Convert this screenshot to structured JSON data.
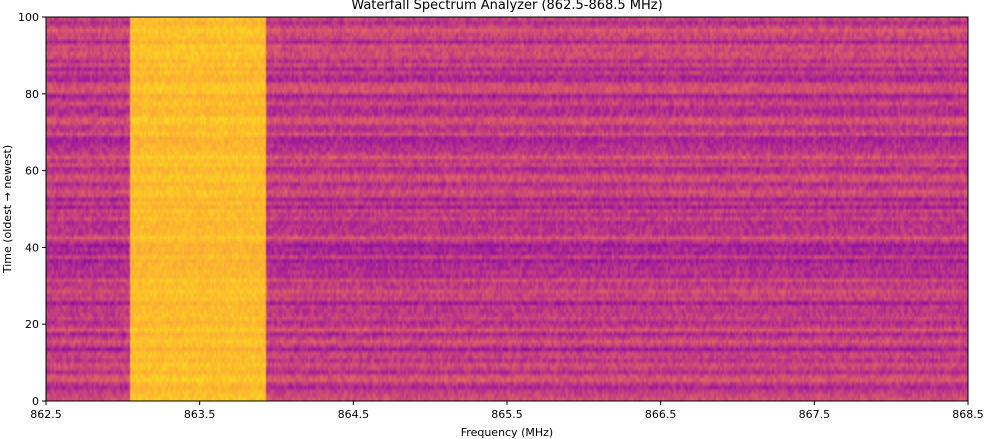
{
  "chart_data": {
    "type": "heatmap",
    "title": "Waterfall Spectrum Analyzer (862.5-868.5 MHz)",
    "xlabel": "Frequency (MHz)",
    "ylabel": "Time (oldest → newest)",
    "xlim": [
      862.5,
      868.5
    ],
    "ylim": [
      0,
      100
    ],
    "x_ticks": [
      862.5,
      863.5,
      864.5,
      865.5,
      866.5,
      867.5,
      868.5
    ],
    "x_tick_labels": [
      "862.5",
      "863.5",
      "864.5",
      "865.5",
      "866.5",
      "867.5",
      "868.5"
    ],
    "y_ticks": [
      0,
      20,
      40,
      60,
      80,
      100
    ],
    "y_tick_labels": [
      "0",
      "20",
      "40",
      "60",
      "80",
      "100"
    ],
    "colormap": "plasma",
    "grid": false,
    "legend": "none",
    "signal_band": {
      "start_mhz": 863.05,
      "end_mhz": 863.93,
      "level": "high"
    },
    "background_level": "medium"
  }
}
